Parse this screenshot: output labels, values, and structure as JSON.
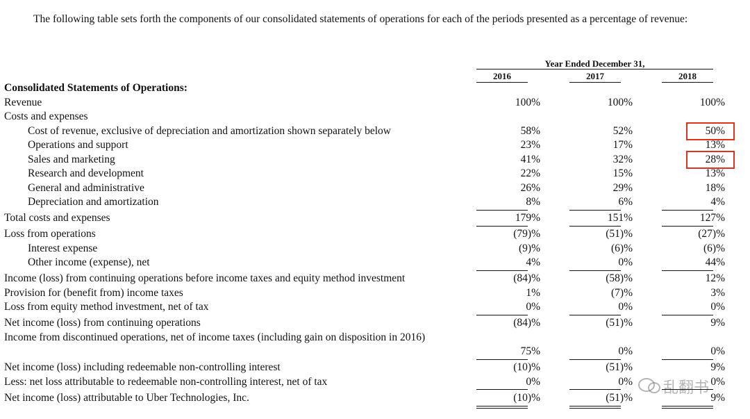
{
  "intro": "The following table sets forth the components of our consolidated statements of operations for each of the periods presented as a percentage of revenue:",
  "table": {
    "period_header": "Year Ended December 31,",
    "columns": [
      "2016",
      "2017",
      "2018"
    ],
    "rows": [
      {
        "label": "Consolidated Statements of Operations:",
        "bold": true,
        "values": []
      },
      {
        "label": "Revenue",
        "values": [
          "100%",
          "100%",
          "100%"
        ]
      },
      {
        "label": "Costs and expenses",
        "values": []
      },
      {
        "label": "Cost of revenue, exclusive of depreciation and amortization shown separately below",
        "indent": true,
        "values": [
          "58%",
          "52%",
          "50%"
        ],
        "highlight_column": 2
      },
      {
        "label": "Operations and support",
        "indent": true,
        "values": [
          "23%",
          "17%",
          "13%"
        ]
      },
      {
        "label": "Sales and marketing",
        "indent": true,
        "values": [
          "41%",
          "32%",
          "28%"
        ],
        "highlight_column": 2
      },
      {
        "label": "Research and development",
        "indent": true,
        "values": [
          "22%",
          "15%",
          "13%"
        ]
      },
      {
        "label": "General and administrative",
        "indent": true,
        "values": [
          "26%",
          "29%",
          "18%"
        ]
      },
      {
        "label": "Depreciation and amortization",
        "indent": true,
        "values": [
          "8%",
          "6%",
          "4%"
        ]
      },
      {
        "label": "Total costs and expenses",
        "rule_above": true,
        "values": [
          "179%",
          "151%",
          "127%"
        ]
      },
      {
        "label": "Loss from operations",
        "rule_above": true,
        "values": [
          "(79)%",
          "(51)%",
          "(27)%"
        ]
      },
      {
        "label": "Interest expense",
        "indent": true,
        "values": [
          "(9)%",
          "(6)%",
          "(6)%"
        ]
      },
      {
        "label": "Other income (expense), net",
        "indent": true,
        "values": [
          "4%",
          "0%",
          "44%"
        ]
      },
      {
        "label": "Income (loss) from continuing operations before income taxes and equity method investment",
        "rule_above": true,
        "values": [
          "(84)%",
          "(58)%",
          "12%"
        ]
      },
      {
        "label": "Provision for (benefit from) income taxes",
        "values": [
          "1%",
          "(7)%",
          "3%"
        ]
      },
      {
        "label": "Loss from equity method investment, net of tax",
        "values": [
          "0%",
          "0%",
          "0%"
        ]
      },
      {
        "label": "Net income (loss) from continuing operations",
        "rule_above": true,
        "values": [
          "(84)%",
          "(51)%",
          "9%"
        ]
      },
      {
        "label": "Income from discontinued operations, net of income taxes (including gain on disposition in 2016)",
        "wrapped": true,
        "values": [
          "75%",
          "0%",
          "0%"
        ]
      },
      {
        "label": "Net income (loss) including redeemable non-controlling interest",
        "rule_above": true,
        "values": [
          "(10)%",
          "(51)%",
          "9%"
        ]
      },
      {
        "label": "Less: net loss attributable to redeemable non-controlling interest, net of tax",
        "values": [
          "0%",
          "0%",
          "0%"
        ]
      },
      {
        "label": "Net income (loss) attributable to Uber Technologies, Inc.",
        "rule_above": true,
        "double_rule_below": true,
        "values": [
          "(10)%",
          "(51)%",
          "9%"
        ]
      }
    ]
  },
  "watermark": "乱翻书"
}
